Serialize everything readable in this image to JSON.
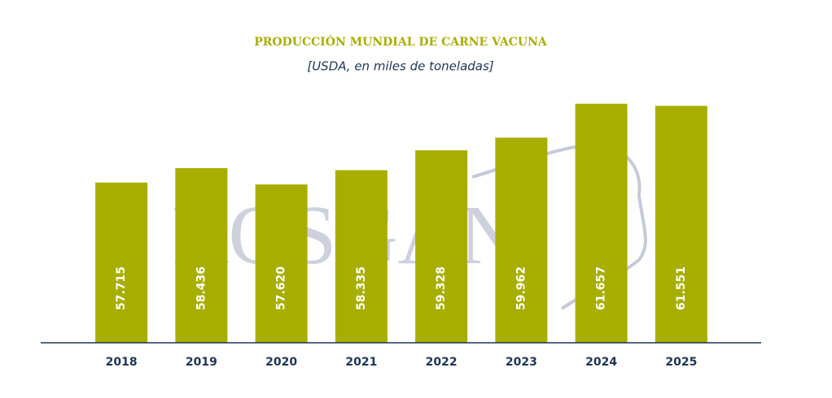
{
  "chart_data": {
    "type": "bar",
    "title": "PRODUCCIÓN MUNDIAL DE CARNE VACUNA",
    "subtitle": "[USDA, en miles de toneladas]",
    "watermark": "ROSGAN",
    "categories": [
      "2018",
      "2019",
      "2020",
      "2021",
      "2022",
      "2023",
      "2024",
      "2025"
    ],
    "values": [
      57715,
      58436,
      57620,
      58335,
      59328,
      59962,
      61657,
      61551
    ],
    "value_labels": [
      "57.715",
      "58.436",
      "57.620",
      "58.335",
      "59.328",
      "59.962",
      "61.657",
      "61.551"
    ],
    "color": "#a8ae00",
    "ylim": [
      49700,
      62500
    ]
  }
}
